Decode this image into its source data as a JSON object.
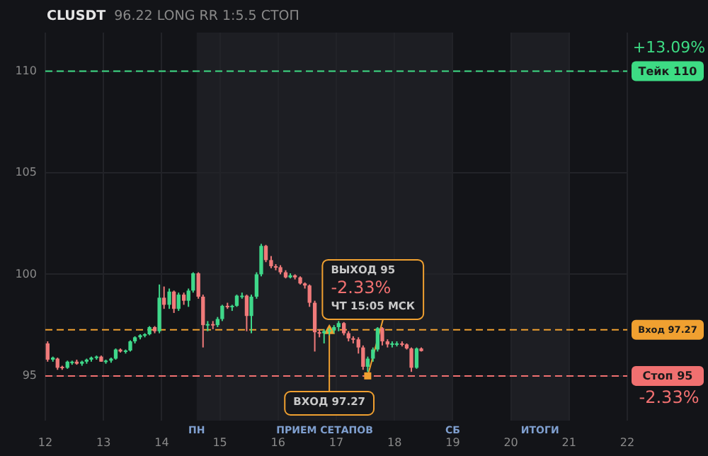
{
  "chart_data": {
    "type": "candlestick",
    "title": "CLUSDT",
    "subtitle": "96.22 LONG RR 1:5.5 СТОП",
    "x": [
      12.04,
      12.13,
      12.21,
      12.29,
      12.38,
      12.46,
      12.54,
      12.63,
      12.71,
      12.79,
      12.88,
      12.96,
      13.04,
      13.13,
      13.21,
      13.29,
      13.38,
      13.46,
      13.54,
      13.63,
      13.71,
      13.79,
      13.88,
      13.96,
      14.04,
      14.13,
      14.21,
      14.29,
      14.38,
      14.46,
      14.54,
      14.63,
      14.71,
      14.79,
      14.88,
      14.96,
      15.04,
      15.13,
      15.21,
      15.29,
      15.38,
      15.46,
      15.54,
      15.63,
      15.71,
      15.79,
      15.88,
      15.96,
      16.04,
      16.13,
      16.21,
      16.29,
      16.38,
      16.46,
      16.54,
      16.63,
      16.71,
      16.79,
      16.88,
      16.96,
      17.04,
      17.13,
      17.21,
      17.29,
      17.38,
      17.46,
      17.54,
      17.63,
      17.71,
      17.79,
      17.88,
      17.96,
      18.04,
      18.13,
      18.21,
      18.29,
      18.38,
      18.46
    ],
    "ohlc": [
      [
        96.6,
        96.7,
        95.7,
        95.8
      ],
      [
        95.8,
        95.95,
        95.7,
        95.9
      ],
      [
        95.85,
        95.9,
        95.3,
        95.4
      ],
      [
        95.45,
        95.5,
        95.3,
        95.4
      ],
      [
        95.4,
        95.75,
        95.35,
        95.7
      ],
      [
        95.65,
        95.75,
        95.55,
        95.7
      ],
      [
        95.7,
        95.8,
        95.55,
        95.6
      ],
      [
        95.6,
        95.75,
        95.5,
        95.7
      ],
      [
        95.7,
        95.85,
        95.6,
        95.8
      ],
      [
        95.8,
        95.95,
        95.7,
        95.9
      ],
      [
        95.9,
        96.0,
        95.8,
        95.95
      ],
      [
        95.95,
        96.0,
        95.7,
        95.7
      ],
      [
        95.7,
        95.8,
        95.6,
        95.75
      ],
      [
        95.75,
        95.9,
        95.65,
        95.85
      ],
      [
        95.85,
        96.35,
        95.8,
        96.3
      ],
      [
        96.3,
        96.35,
        96.15,
        96.2
      ],
      [
        96.2,
        96.3,
        96.1,
        96.25
      ],
      [
        96.25,
        96.75,
        96.2,
        96.7
      ],
      [
        96.7,
        96.95,
        96.6,
        96.9
      ],
      [
        96.9,
        97.05,
        96.8,
        97.0
      ],
      [
        97.0,
        97.1,
        96.9,
        97.05
      ],
      [
        97.05,
        97.45,
        97.0,
        97.4
      ],
      [
        97.4,
        97.45,
        97.1,
        97.2
      ],
      [
        97.2,
        99.5,
        97.1,
        98.85
      ],
      [
        98.85,
        99.4,
        98.3,
        98.5
      ],
      [
        98.5,
        99.3,
        98.3,
        99.15
      ],
      [
        99.15,
        99.2,
        98.1,
        98.3
      ],
      [
        98.3,
        99.1,
        98.2,
        99.0
      ],
      [
        99.0,
        99.1,
        98.5,
        98.7
      ],
      [
        98.7,
        99.3,
        98.4,
        99.2
      ],
      [
        99.2,
        100.1,
        99.1,
        100.05
      ],
      [
        100.05,
        100.1,
        98.8,
        98.9
      ],
      [
        98.9,
        99.0,
        96.4,
        97.5
      ],
      [
        97.5,
        97.7,
        97.2,
        97.55
      ],
      [
        97.55,
        97.7,
        97.3,
        97.5
      ],
      [
        97.5,
        97.9,
        97.4,
        97.8
      ],
      [
        97.8,
        98.5,
        97.7,
        98.45
      ],
      [
        98.45,
        98.6,
        98.3,
        98.4
      ],
      [
        98.4,
        98.5,
        98.2,
        98.45
      ],
      [
        98.45,
        99.0,
        98.4,
        98.95
      ],
      [
        98.95,
        99.1,
        98.8,
        98.95
      ],
      [
        98.95,
        99.0,
        97.2,
        97.95
      ],
      [
        97.95,
        99.0,
        97.1,
        98.9
      ],
      [
        98.9,
        100.1,
        98.8,
        100.0
      ],
      [
        100.0,
        101.5,
        99.9,
        101.4
      ],
      [
        101.4,
        101.45,
        100.6,
        100.7
      ],
      [
        100.7,
        100.9,
        100.3,
        100.4
      ],
      [
        100.4,
        100.5,
        100.2,
        100.35
      ],
      [
        100.35,
        100.45,
        100.0,
        100.1
      ],
      [
        100.1,
        100.2,
        99.8,
        99.85
      ],
      [
        99.85,
        100.05,
        99.8,
        99.95
      ],
      [
        99.95,
        100.0,
        99.75,
        99.85
      ],
      [
        99.85,
        99.9,
        99.5,
        99.55
      ],
      [
        99.55,
        99.6,
        99.3,
        99.45
      ],
      [
        99.45,
        99.5,
        98.4,
        98.6
      ],
      [
        98.6,
        98.7,
        96.2,
        97.15
      ],
      [
        97.15,
        97.3,
        96.9,
        97.1
      ],
      [
        97.1,
        97.3,
        96.6,
        97.2
      ],
      [
        97.2,
        97.35,
        97.0,
        97.25
      ],
      [
        97.25,
        97.5,
        97.1,
        97.4
      ],
      [
        97.4,
        97.7,
        97.2,
        97.6
      ],
      [
        97.6,
        97.65,
        97.0,
        97.1
      ],
      [
        97.1,
        97.2,
        96.7,
        96.85
      ],
      [
        96.85,
        96.95,
        96.6,
        96.8
      ],
      [
        96.8,
        96.9,
        96.1,
        96.4
      ],
      [
        96.4,
        96.5,
        95.3,
        95.45
      ],
      [
        95.45,
        95.95,
        95.2,
        95.85
      ],
      [
        95.85,
        96.4,
        95.7,
        96.3
      ],
      [
        96.3,
        97.4,
        96.2,
        97.35
      ],
      [
        97.35,
        97.4,
        96.5,
        96.7
      ],
      [
        96.7,
        96.8,
        96.4,
        96.55
      ],
      [
        96.55,
        96.7,
        96.4,
        96.6
      ],
      [
        96.55,
        96.7,
        96.45,
        96.6
      ],
      [
        96.6,
        96.7,
        96.45,
        96.55
      ],
      [
        96.55,
        96.6,
        96.3,
        96.35
      ],
      [
        96.35,
        96.4,
        95.2,
        95.4
      ],
      [
        95.4,
        96.4,
        95.35,
        96.35
      ],
      [
        96.35,
        96.4,
        96.2,
        96.22
      ]
    ],
    "xlim": [
      12,
      22
    ],
    "xticks": [
      12,
      13,
      14,
      15,
      16,
      17,
      18,
      19,
      20,
      21,
      22
    ],
    "ylim": [
      92.8,
      111.9
    ],
    "yticks": [
      95,
      100,
      105,
      110
    ],
    "grid": true,
    "ref_lines": [
      {
        "axis": "y",
        "value": 110,
        "label": "Тейк 110",
        "color": "#3ddc84",
        "line_style": "dashed"
      },
      {
        "axis": "y",
        "value": 97.27,
        "label": "Вход 97.27",
        "color": "#f0a030",
        "line_style": "dashed"
      },
      {
        "axis": "y",
        "value": 95,
        "label": "Стоп 95",
        "color": "#f07070",
        "line_style": "dashed"
      }
    ],
    "bands": [
      {
        "axis": "x",
        "from": 14.6,
        "to": 19,
        "label": "ПРИЕМ СЕТАПОВ",
        "color": "#1d1e23"
      },
      {
        "axis": "x",
        "from": 20,
        "to": 21,
        "label": "ИТОГИ",
        "color": "#1d1e23"
      }
    ],
    "annotations": [
      {
        "text": "ВХОД 97.27",
        "x": 16.88,
        "y": 97.27
      },
      {
        "text": "ВЫХОД 95\n-2.33%\nЧТ 15:05 МСК",
        "x": 17.54,
        "y": 95
      },
      "+13.09%",
      "-2.33%",
      "ПН",
      "СБ"
    ]
  }
}
